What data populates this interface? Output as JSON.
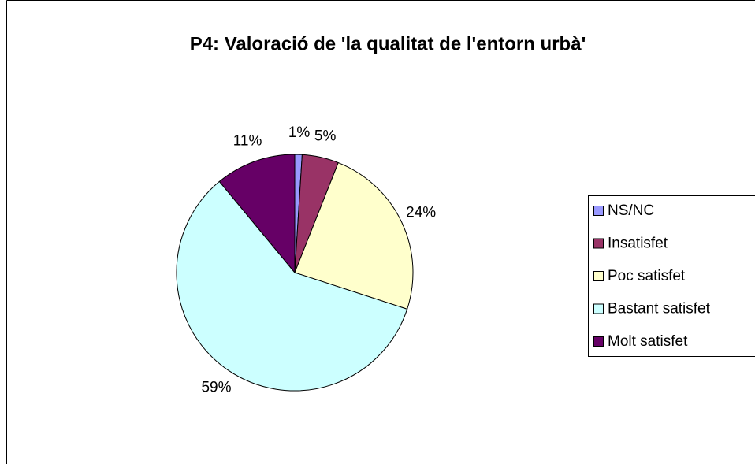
{
  "chart_data": {
    "type": "pie",
    "title": "P4: Valoració de 'la qualitat de l'entorn urbà'",
    "categories": [
      "NS/NC",
      "Insatisfet",
      "Poc satisfet",
      "Bastant satisfet",
      "Molt satisfet"
    ],
    "values": [
      1,
      5,
      24,
      59,
      11
    ],
    "value_labels": [
      "1%",
      "5%",
      "24%",
      "59%",
      "11%"
    ],
    "colors": [
      "#9999ff",
      "#993366",
      "#ffffcc",
      "#ccffff",
      "#660066"
    ],
    "legend": "right"
  }
}
